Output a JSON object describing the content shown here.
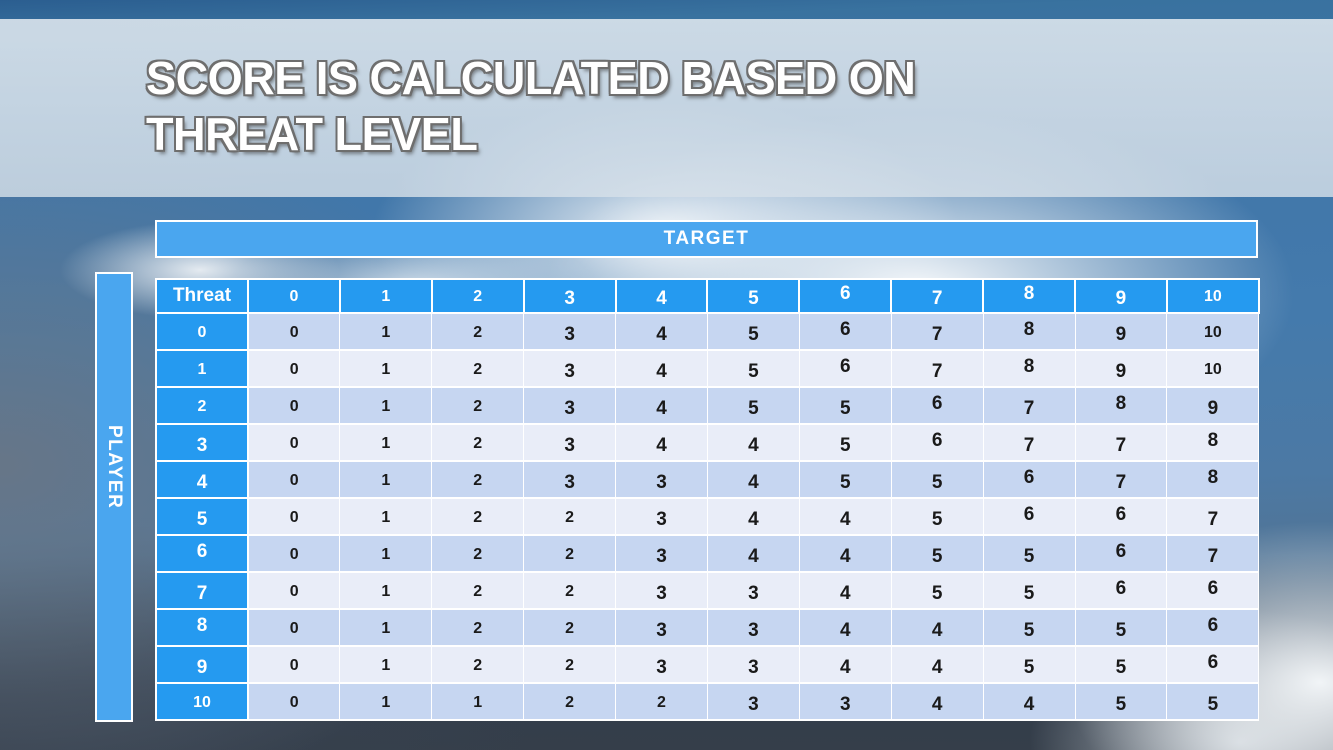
{
  "slide": {
    "title_line1": "SCORE IS CALCULATED BASED ON",
    "title_line2": "THREAT LEVEL"
  },
  "table": {
    "target_label": "TARGET",
    "player_label": "PLAYER",
    "corner_label": "Threat",
    "col_headers": [
      "0",
      "1",
      "2",
      "3",
      "4",
      "5",
      "6",
      "7",
      "8",
      "9",
      "10"
    ],
    "rows": [
      {
        "label": "0",
        "values": [
          "0",
          "1",
          "2",
          "3",
          "4",
          "5",
          "6",
          "7",
          "8",
          "9",
          "10"
        ]
      },
      {
        "label": "1",
        "values": [
          "0",
          "1",
          "2",
          "3",
          "4",
          "5",
          "6",
          "7",
          "8",
          "9",
          "10"
        ]
      },
      {
        "label": "2",
        "values": [
          "0",
          "1",
          "2",
          "3",
          "4",
          "5",
          "5",
          "6",
          "7",
          "8",
          "9"
        ]
      },
      {
        "label": "3",
        "values": [
          "0",
          "1",
          "2",
          "3",
          "4",
          "4",
          "5",
          "6",
          "7",
          "7",
          "8"
        ]
      },
      {
        "label": "4",
        "values": [
          "0",
          "1",
          "2",
          "3",
          "3",
          "4",
          "5",
          "5",
          "6",
          "7",
          "8"
        ]
      },
      {
        "label": "5",
        "values": [
          "0",
          "1",
          "2",
          "2",
          "3",
          "4",
          "4",
          "5",
          "6",
          "6",
          "7"
        ]
      },
      {
        "label": "6",
        "values": [
          "0",
          "1",
          "2",
          "2",
          "3",
          "4",
          "4",
          "5",
          "5",
          "6",
          "7"
        ]
      },
      {
        "label": "7",
        "values": [
          "0",
          "1",
          "2",
          "2",
          "3",
          "3",
          "4",
          "5",
          "5",
          "6",
          "6"
        ]
      },
      {
        "label": "8",
        "values": [
          "0",
          "1",
          "2",
          "2",
          "3",
          "3",
          "4",
          "4",
          "5",
          "5",
          "6"
        ]
      },
      {
        "label": "9",
        "values": [
          "0",
          "1",
          "2",
          "2",
          "3",
          "3",
          "4",
          "4",
          "5",
          "5",
          "6"
        ]
      },
      {
        "label": "10",
        "values": [
          "0",
          "1",
          "1",
          "2",
          "2",
          "3",
          "3",
          "4",
          "4",
          "5",
          "5"
        ]
      }
    ]
  },
  "colors": {
    "banner_blue": "#4aa6ef",
    "header_blue": "#259af0",
    "row_even": "#c6d6f1",
    "row_odd": "#e9edf8",
    "cell_text": "#1a1a1a",
    "title_fill": "#ffffff",
    "title_outline": "#6e6e6e"
  }
}
